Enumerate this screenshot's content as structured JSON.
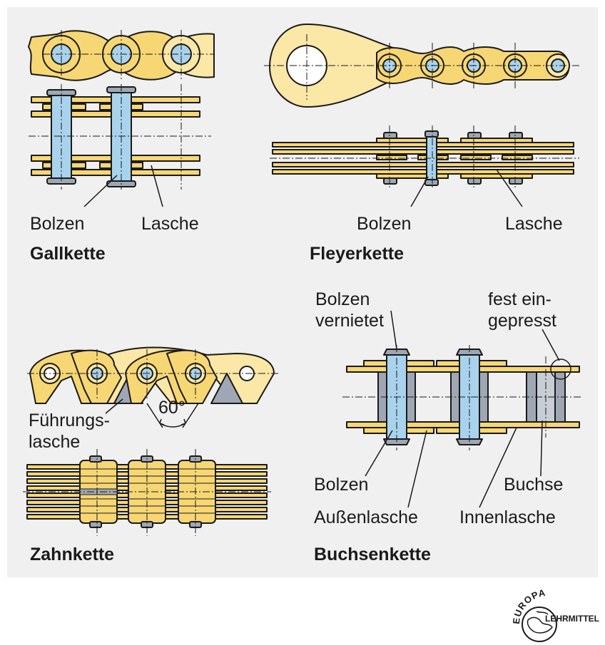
{
  "colors": {
    "plate": "#f7d774",
    "plate_light": "#fbe7a6",
    "pin": "#a9d3ec",
    "steel": "#9ea7b3",
    "line": "#1a1a1a",
    "panel": "#f0f0f0"
  },
  "gallkette": {
    "title": "Gallkette",
    "label_bolzen": "Bolzen",
    "label_lasche": "Lasche"
  },
  "fleyerkette": {
    "title": "Fleyerkette",
    "label_bolzen": "Bolzen",
    "label_lasche": "Lasche"
  },
  "zahnkette": {
    "title": "Zahnkette",
    "label_fuehrung_1": "Führungs-",
    "label_fuehrung_2": "lasche",
    "angle": "60°"
  },
  "buchsenkette": {
    "title": "Buchsenkette",
    "label_bolzen_top_1": "Bolzen",
    "label_bolzen_top_2": "vernietet",
    "label_fest_1": "fest ein-",
    "label_fest_2": "gepresst",
    "label_bolzen": "Bolzen",
    "label_aussen": "Außenlasche",
    "label_buchse": "Buchse",
    "label_innen": "Innenlasche"
  },
  "logo": {
    "top": "EUROPA",
    "side": "LEHRMITTEL",
    "icon": "globe-icon"
  }
}
